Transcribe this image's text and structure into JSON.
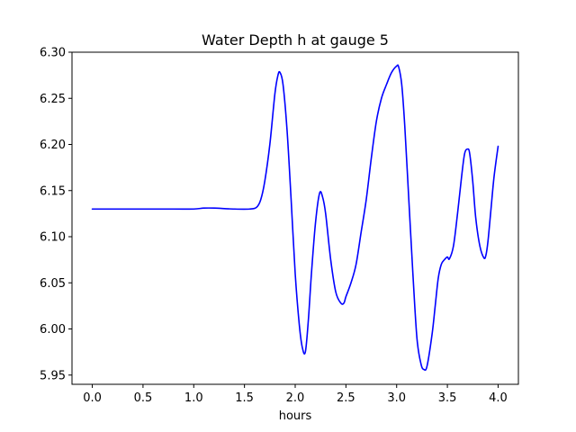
{
  "chart_data": {
    "type": "line",
    "title": "Water Depth h at gauge 5",
    "xlabel": "hours",
    "ylabel": "",
    "xlim": [
      -0.2,
      4.2
    ],
    "ylim": [
      5.94,
      6.3
    ],
    "xticks": [
      0.0,
      0.5,
      1.0,
      1.5,
      2.0,
      2.5,
      3.0,
      3.5,
      4.0
    ],
    "xtick_labels": [
      "0.0",
      "0.5",
      "1.0",
      "1.5",
      "2.0",
      "2.5",
      "3.0",
      "3.5",
      "4.0"
    ],
    "yticks": [
      5.95,
      6.0,
      6.05,
      6.1,
      6.15,
      6.2,
      6.25,
      6.3
    ],
    "ytick_labels": [
      "5.95",
      "6.00",
      "6.05",
      "6.10",
      "6.15",
      "6.20",
      "6.25",
      "6.30"
    ],
    "grid": false,
    "series": [
      {
        "color": "#0000ff",
        "x": [
          0.0,
          0.5,
          0.8,
          1.0,
          1.1,
          1.2,
          1.4,
          1.55,
          1.62,
          1.66,
          1.7,
          1.75,
          1.8,
          1.83,
          1.85,
          1.88,
          1.92,
          1.96,
          2.0,
          2.04,
          2.07,
          2.1,
          2.13,
          2.16,
          2.2,
          2.24,
          2.27,
          2.3,
          2.35,
          2.4,
          2.45,
          2.48,
          2.5,
          2.55,
          2.6,
          2.65,
          2.7,
          2.75,
          2.8,
          2.85,
          2.9,
          2.95,
          3.0,
          3.02,
          3.05,
          3.08,
          3.12,
          3.16,
          3.2,
          3.24,
          3.27,
          3.3,
          3.35,
          3.38,
          3.41,
          3.44,
          3.47,
          3.5,
          3.52,
          3.56,
          3.6,
          3.64,
          3.67,
          3.7,
          3.72,
          3.75,
          3.78,
          3.82,
          3.86,
          3.88,
          3.9,
          3.93,
          3.96,
          4.0
        ],
        "y": [
          6.13,
          6.13,
          6.13,
          6.13,
          6.131,
          6.131,
          6.13,
          6.13,
          6.132,
          6.14,
          6.16,
          6.2,
          6.255,
          6.275,
          6.278,
          6.265,
          6.215,
          6.14,
          6.06,
          6.005,
          5.98,
          5.975,
          6.01,
          6.06,
          6.115,
          6.147,
          6.143,
          6.125,
          6.075,
          6.04,
          6.028,
          6.028,
          6.035,
          6.05,
          6.07,
          6.105,
          6.14,
          6.185,
          6.225,
          6.25,
          6.265,
          6.278,
          6.285,
          6.284,
          6.265,
          6.22,
          6.14,
          6.06,
          5.99,
          5.962,
          5.956,
          5.96,
          5.995,
          6.025,
          6.055,
          6.07,
          6.075,
          6.078,
          6.076,
          6.09,
          6.125,
          6.165,
          6.19,
          6.195,
          6.19,
          6.16,
          6.12,
          6.09,
          6.077,
          6.08,
          6.095,
          6.13,
          6.165,
          6.198
        ]
      }
    ]
  }
}
